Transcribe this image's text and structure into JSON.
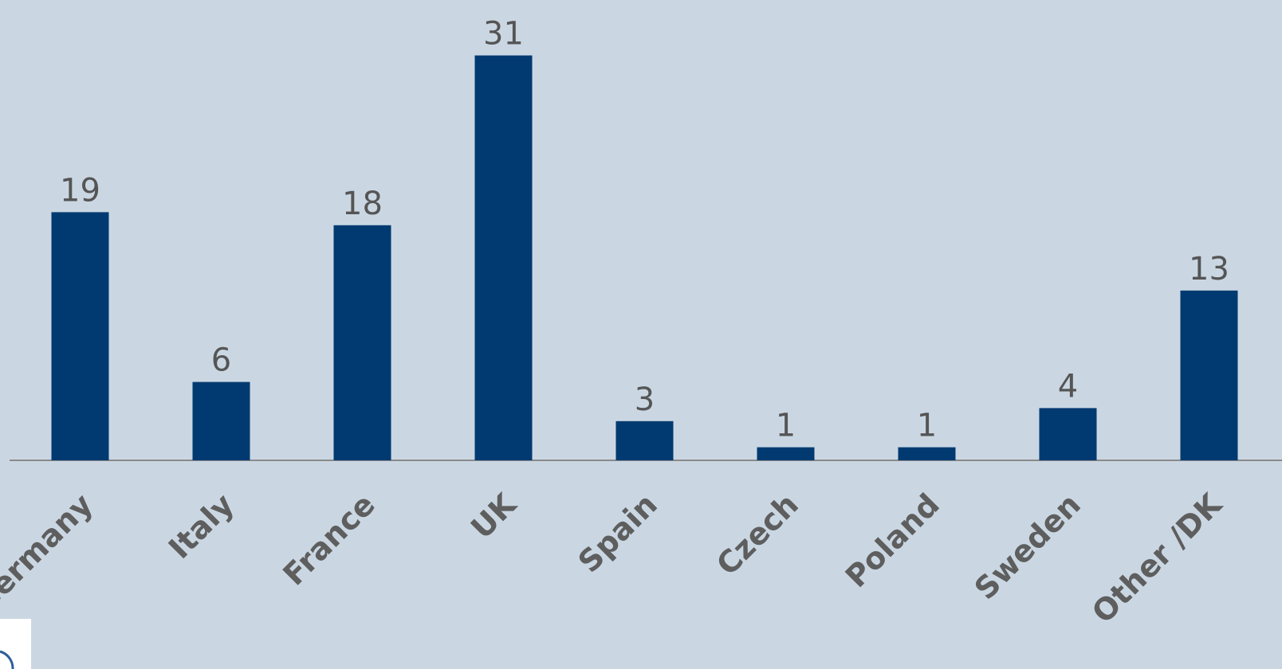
{
  "chart_data": {
    "type": "bar",
    "categories": [
      "Germany",
      "Italy",
      "France",
      "UK",
      "Spain",
      "Czech",
      "Poland",
      "Sweden",
      "Other /DK"
    ],
    "values": [
      19,
      6,
      18,
      31,
      3,
      1,
      1,
      4,
      13
    ],
    "color": "#003a70"
  }
}
